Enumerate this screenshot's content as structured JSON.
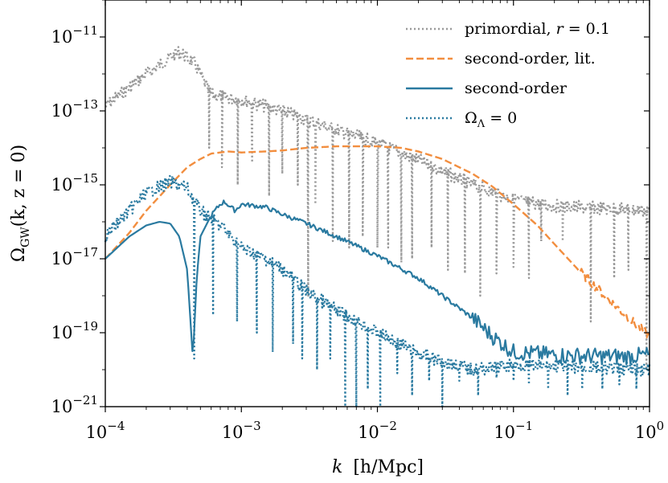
{
  "chart_data": {
    "type": "line",
    "title": "",
    "xlabel": "k [h/Mpc]",
    "ylabel": "Ω_GW(k, z = 0)",
    "xscale": "log",
    "yscale": "log",
    "xlim": [
      0.0001,
      1
    ],
    "ylim": [
      1e-21,
      1e-10
    ],
    "grid": false,
    "legend_position": "top-right",
    "x_ticks": [
      {
        "value": 0.0001,
        "base": "10",
        "exp": "−4"
      },
      {
        "value": 0.001,
        "base": "10",
        "exp": "−3"
      },
      {
        "value": 0.01,
        "base": "10",
        "exp": "−2"
      },
      {
        "value": 0.1,
        "base": "10",
        "exp": "−1"
      },
      {
        "value": 1,
        "base": "10",
        "exp": "0"
      }
    ],
    "y_ticks": [
      {
        "value": 1e-11,
        "base": "10",
        "exp": "−11"
      },
      {
        "value": 1e-13,
        "base": "10",
        "exp": "−13"
      },
      {
        "value": 1e-15,
        "base": "10",
        "exp": "−15"
      },
      {
        "value": 1e-17,
        "base": "10",
        "exp": "−17"
      },
      {
        "value": 1e-19,
        "base": "10",
        "exp": "−19"
      },
      {
        "value": 1e-21,
        "base": "10",
        "exp": "−21"
      }
    ],
    "series": [
      {
        "name": "primordial, r = 0.1",
        "color": "#999999",
        "style": "dotted",
        "envelope": [
          [
            0.0001,
            2e-13
          ],
          [
            0.0002,
            1.5e-12
          ],
          [
            0.00035,
            6e-12
          ],
          [
            0.00045,
            3e-12
          ],
          [
            0.0006,
            4e-13
          ],
          [
            0.001,
            3e-13
          ],
          [
            0.002,
            1.5e-13
          ],
          [
            0.004,
            6e-14
          ],
          [
            0.01,
            2e-14
          ],
          [
            0.02,
            7e-15
          ],
          [
            0.05,
            1.5e-15
          ],
          [
            0.1,
            6e-16
          ],
          [
            0.2,
            4e-16
          ],
          [
            1,
            3e-16
          ]
        ],
        "dips": [
          0.00058,
          0.00072,
          0.00094,
          0.0012,
          0.0016,
          0.002,
          0.0026,
          0.0031,
          0.0035,
          0.0047,
          0.0062,
          0.0078,
          0.01,
          0.012,
          0.015,
          0.018,
          0.025,
          0.033,
          0.044,
          0.057,
          0.075,
          0.1,
          0.13,
          0.16,
          0.23,
          0.37,
          0.55,
          0.7,
          0.95
        ],
        "dip_values": [
          1e-14,
          3e-15,
          1e-15,
          4e-15,
          5e-16,
          2e-15,
          1e-15,
          1e-18,
          3e-16,
          3e-17,
          2e-17,
          4e-17,
          2e-17,
          2e-17,
          8e-18,
          1e-17,
          2e-17,
          5e-18,
          4e-18,
          1e-18,
          4e-18,
          6e-18,
          3e-18,
          3e-17,
          3e-17,
          2e-19,
          3e-18,
          5e-18,
          1e-20
        ]
      },
      {
        "name": "second-order, lit.",
        "color": "#f28e3f",
        "style": "dashed",
        "points": [
          [
            0.0001,
            1e-17
          ],
          [
            0.00015,
            5e-17
          ],
          [
            0.0002,
            2e-16
          ],
          [
            0.0003,
            1e-15
          ],
          [
            0.0004,
            3e-15
          ],
          [
            0.0005,
            5e-15
          ],
          [
            0.0006,
            7e-15
          ],
          [
            0.0008,
            8e-15
          ],
          [
            0.001,
            7.5e-15
          ],
          [
            0.0015,
            8e-15
          ],
          [
            0.002,
            8.5e-15
          ],
          [
            0.003,
            1e-14
          ],
          [
            0.005,
            1.1e-14
          ],
          [
            0.01,
            1.1e-14
          ],
          [
            0.015,
            1e-14
          ],
          [
            0.02,
            8e-15
          ],
          [
            0.03,
            5e-15
          ],
          [
            0.05,
            2e-15
          ],
          [
            0.07,
            9e-16
          ],
          [
            0.1,
            3e-16
          ],
          [
            0.15,
            8e-17
          ],
          [
            0.2,
            2.5e-17
          ],
          [
            0.3,
            5e-18
          ],
          [
            0.5,
            8e-19
          ],
          [
            0.7,
            2.5e-19
          ],
          [
            1,
            8e-20
          ]
        ]
      },
      {
        "name": "second-order",
        "color": "#2a7aa0",
        "style": "solid",
        "points": [
          [
            0.0001,
            1e-17
          ],
          [
            0.00015,
            4e-17
          ],
          [
            0.0002,
            8e-17
          ],
          [
            0.00025,
            1e-16
          ],
          [
            0.0003,
            9e-17
          ],
          [
            0.00035,
            4e-17
          ],
          [
            0.0004,
            5e-18
          ],
          [
            0.00044,
            2e-20
          ],
          [
            0.00047,
            3e-18
          ],
          [
            0.0005,
            4e-17
          ],
          [
            0.0006,
            1.5e-16
          ],
          [
            0.0007,
            3e-16
          ],
          [
            0.00075,
            3.5e-16
          ],
          [
            0.0009,
            2e-16
          ],
          [
            0.001,
            3e-16
          ],
          [
            0.0015,
            2.5e-16
          ],
          [
            0.002,
            1.6e-16
          ],
          [
            0.003,
            9e-17
          ],
          [
            0.005,
            4e-17
          ],
          [
            0.01,
            1.2e-17
          ],
          [
            0.02,
            3e-18
          ],
          [
            0.03,
            1e-18
          ],
          [
            0.05,
            2.5e-19
          ],
          [
            0.07,
            8e-20
          ],
          [
            0.1,
            3e-20
          ],
          [
            0.2,
            2.5e-20
          ],
          [
            0.4,
            2.3e-20
          ],
          [
            0.7,
            2.3e-20
          ],
          [
            1,
            2.5e-20
          ]
        ]
      },
      {
        "name": "Ω_Λ = 0",
        "color": "#2a7aa0",
        "style": "dotted",
        "envelope": [
          [
            0.0001,
            6e-17
          ],
          [
            0.00015,
            3e-16
          ],
          [
            0.0002,
            9e-16
          ],
          [
            0.0003,
            1.8e-15
          ],
          [
            0.0004,
            1.2e-15
          ],
          [
            0.0005,
            3e-16
          ],
          [
            0.0007,
            1.2e-16
          ],
          [
            0.001,
            3e-17
          ],
          [
            0.0015,
            1.5e-17
          ],
          [
            0.002,
            8e-18
          ],
          [
            0.003,
            2e-18
          ],
          [
            0.005,
            6e-19
          ],
          [
            0.01,
            1.5e-19
          ],
          [
            0.02,
            4e-20
          ],
          [
            0.05,
            1.5e-20
          ],
          [
            0.1,
            2e-20
          ],
          [
            1,
            1.5e-20
          ]
        ],
        "dips": [
          0.00045,
          0.00062,
          0.00093,
          0.0013,
          0.0017,
          0.0024,
          0.0028,
          0.0036,
          0.0045,
          0.0058,
          0.007,
          0.0085,
          0.0105,
          0.014,
          0.018,
          0.024,
          0.03,
          0.04,
          0.055,
          0.075,
          0.1,
          0.13,
          0.18,
          0.25,
          0.32,
          0.45,
          0.6,
          0.8
        ],
        "dip_values": [
          2e-20,
          3e-19,
          2e-19,
          1e-19,
          3e-20,
          5e-20,
          2e-20,
          1e-20,
          2e-20,
          1e-21,
          1e-21,
          3e-21,
          1e-21,
          8e-21,
          2e-21,
          5e-21,
          1e-21,
          5e-21,
          2e-21,
          6e-21,
          5e-21,
          4e-21,
          3e-21,
          2e-21,
          3e-21,
          3e-21,
          4e-21,
          3e-21
        ]
      }
    ]
  },
  "axes": {
    "xlabel_k": "k",
    "xlabel_units": "[h/Mpc]",
    "ylabel_omega": "Ω",
    "ylabel_sub": "GW",
    "ylabel_args": "(k, z = 0)"
  },
  "legend": {
    "items": [
      {
        "label": "primordial, ",
        "label_var": "r",
        "label_rest": " = 0.1"
      },
      {
        "label": "second-order, lit."
      },
      {
        "label": "second-order"
      },
      {
        "label_omega": "Ω",
        "label_sub": "Λ",
        "label_rest": " = 0"
      }
    ]
  }
}
